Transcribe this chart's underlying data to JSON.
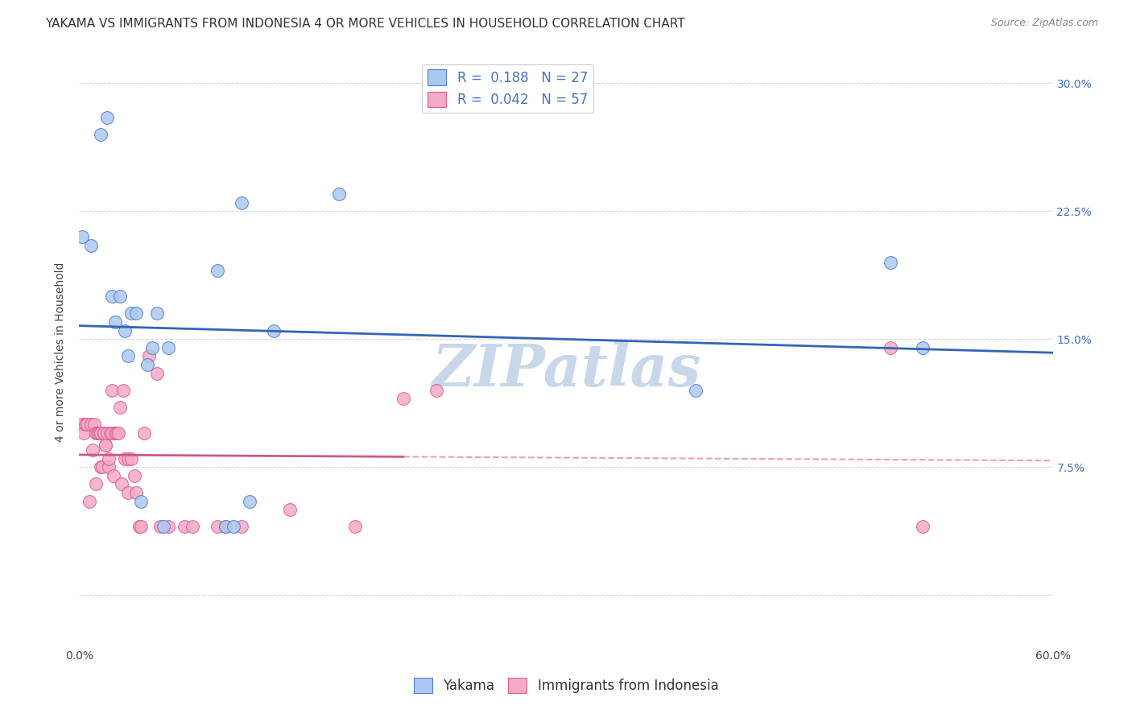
{
  "title": "YAKAMA VS IMMIGRANTS FROM INDONESIA 4 OR MORE VEHICLES IN HOUSEHOLD CORRELATION CHART",
  "source": "Source: ZipAtlas.com",
  "ylabel": "4 or more Vehicles in Household",
  "xlim": [
    0.0,
    0.6
  ],
  "ylim": [
    -0.03,
    0.315
  ],
  "x_tick_positions": [
    0.0,
    0.1,
    0.2,
    0.3,
    0.4,
    0.5,
    0.6
  ],
  "x_tick_labels": [
    "0.0%",
    "",
    "",
    "",
    "",
    "",
    "60.0%"
  ],
  "y_tick_positions": [
    0.0,
    0.075,
    0.15,
    0.225,
    0.3
  ],
  "y_tick_labels_right": [
    "",
    "7.5%",
    "15.0%",
    "22.5%",
    "30.0%"
  ],
  "legend_labels": [
    "Yakama",
    "Immigrants from Indonesia"
  ],
  "yakama_R": "0.188",
  "yakama_N": "27",
  "indonesia_R": "0.042",
  "indonesia_N": "57",
  "yakama_color": "#adc8f0",
  "yakama_edge_color": "#5080c8",
  "yakama_line_color": "#3464b8",
  "indonesia_color": "#f5aac8",
  "indonesia_edge_color": "#d86090",
  "indonesia_line_color": "#d05888",
  "indonesia_line_dash_color": "#e8a0be",
  "watermark": "ZIPatlas",
  "watermark_color": "#c8d8ea",
  "background_color": "#ffffff",
  "grid_color": "#d8d8d8",
  "title_fontsize": 11,
  "axis_label_fontsize": 10,
  "tick_fontsize": 10,
  "legend_fontsize": 12,
  "yakama_x": [
    0.002,
    0.007,
    0.013,
    0.017,
    0.02,
    0.022,
    0.025,
    0.028,
    0.03,
    0.032,
    0.035,
    0.038,
    0.042,
    0.045,
    0.048,
    0.052,
    0.055,
    0.085,
    0.09,
    0.095,
    0.1,
    0.105,
    0.12,
    0.16,
    0.38,
    0.5,
    0.52
  ],
  "yakama_y": [
    0.21,
    0.205,
    0.27,
    0.28,
    0.175,
    0.16,
    0.175,
    0.155,
    0.14,
    0.165,
    0.165,
    0.055,
    0.135,
    0.145,
    0.165,
    0.04,
    0.145,
    0.19,
    0.04,
    0.04,
    0.23,
    0.055,
    0.155,
    0.235,
    0.12,
    0.195,
    0.145
  ],
  "indonesia_x": [
    0.002,
    0.003,
    0.004,
    0.005,
    0.006,
    0.007,
    0.008,
    0.009,
    0.01,
    0.01,
    0.011,
    0.012,
    0.012,
    0.013,
    0.013,
    0.014,
    0.015,
    0.015,
    0.016,
    0.016,
    0.017,
    0.018,
    0.018,
    0.019,
    0.02,
    0.02,
    0.021,
    0.022,
    0.023,
    0.024,
    0.025,
    0.026,
    0.027,
    0.028,
    0.03,
    0.03,
    0.032,
    0.034,
    0.035,
    0.037,
    0.038,
    0.04,
    0.043,
    0.048,
    0.05,
    0.055,
    0.065,
    0.07,
    0.085,
    0.09,
    0.1,
    0.13,
    0.17,
    0.2,
    0.22,
    0.5,
    0.52
  ],
  "indonesia_y": [
    0.1,
    0.095,
    0.1,
    0.1,
    0.055,
    0.1,
    0.085,
    0.1,
    0.065,
    0.095,
    0.095,
    0.095,
    0.095,
    0.075,
    0.095,
    0.075,
    0.095,
    0.095,
    0.088,
    0.088,
    0.095,
    0.075,
    0.08,
    0.095,
    0.095,
    0.12,
    0.07,
    0.095,
    0.095,
    0.095,
    0.11,
    0.065,
    0.12,
    0.08,
    0.06,
    0.08,
    0.08,
    0.07,
    0.06,
    0.04,
    0.04,
    0.095,
    0.14,
    0.13,
    0.04,
    0.04,
    0.04,
    0.04,
    0.04,
    0.04,
    0.04,
    0.05,
    0.04,
    0.115,
    0.12,
    0.145,
    0.04
  ]
}
